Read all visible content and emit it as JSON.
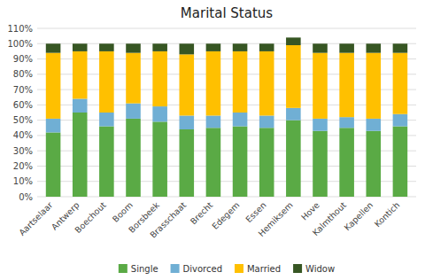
{
  "chart_data": {
    "type": "bar",
    "title": "Marital Status",
    "categories": [
      "Aartselaar",
      "Antwerp",
      "Boechout",
      "Boom",
      "Borsbeek",
      "Brasschaat",
      "Brecht",
      "Edegem",
      "Essen",
      "Hemiksem",
      "Hove",
      "Kalmthout",
      "Kapellen",
      "Kontich"
    ],
    "stacked": true,
    "series": [
      {
        "name": "Single",
        "color": "#5aaa45",
        "values": [
          42,
          55,
          46,
          51,
          49,
          44,
          45,
          46,
          45,
          50,
          43,
          45,
          43,
          46
        ]
      },
      {
        "name": "Divorced",
        "color": "#70afd4",
        "values": [
          9,
          9,
          9,
          10,
          10,
          9,
          8,
          9,
          8,
          8,
          8,
          7,
          8,
          8
        ]
      },
      {
        "name": "Married",
        "color": "#ffc000",
        "values": [
          43,
          31,
          40,
          33,
          36,
          40,
          42,
          40,
          42,
          41,
          43,
          42,
          43,
          40
        ]
      },
      {
        "name": "Widow",
        "color": "#375623",
        "values": [
          6,
          5,
          5,
          6,
          5,
          7,
          5,
          5,
          5,
          5,
          6,
          6,
          6,
          6
        ]
      }
    ],
    "ylim": [
      0,
      110
    ],
    "yticks": [
      {
        "value": 0,
        "label": "0%"
      },
      {
        "value": 10,
        "label": "10%"
      },
      {
        "value": 20,
        "label": "20%"
      },
      {
        "value": 30,
        "label": "30%"
      },
      {
        "value": 40,
        "label": "40%"
      },
      {
        "value": 50,
        "label": "50%"
      },
      {
        "value": 60,
        "label": "60%"
      },
      {
        "value": 70,
        "label": "70%"
      },
      {
        "value": 80,
        "label": "80%"
      },
      {
        "value": 90,
        "label": "90%"
      },
      {
        "value": 100,
        "label": "100%"
      },
      {
        "value": 110,
        "label": "110%"
      }
    ],
    "grid": true,
    "legend": "bottom"
  }
}
